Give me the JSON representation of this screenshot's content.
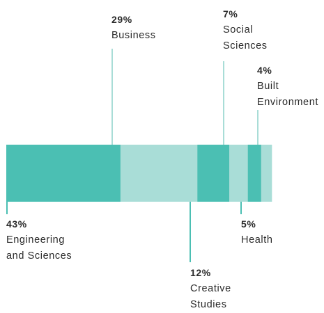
{
  "chart_data": {
    "type": "bar",
    "orientation": "horizontal-stacked-100",
    "title": "",
    "xlabel": "",
    "ylabel": "",
    "total": 100,
    "colors": {
      "dark": "#4bbfb3",
      "light": "#a9ddd7"
    },
    "segments": [
      {
        "id": "engineering",
        "pct_label": "43%",
        "name": "Engineering\nand Sciences",
        "value": 43,
        "shade": "dark",
        "label_side": "below"
      },
      {
        "id": "business",
        "pct_label": "29%",
        "name": "Business",
        "value": 29,
        "shade": "light",
        "label_side": "above"
      },
      {
        "id": "creative",
        "pct_label": "12%",
        "name": "Creative\nStudies",
        "value": 12,
        "shade": "dark",
        "label_side": "below"
      },
      {
        "id": "social",
        "pct_label": "7%",
        "name": "Social\nSciences",
        "value": 7,
        "shade": "light",
        "label_side": "above"
      },
      {
        "id": "health",
        "pct_label": "5%",
        "name": "Health",
        "value": 5,
        "shade": "dark",
        "label_side": "below"
      },
      {
        "id": "built",
        "pct_label": "4%",
        "name": "Built\nEnvironment",
        "value": 4,
        "shade": "light",
        "label_side": "above"
      }
    ]
  }
}
